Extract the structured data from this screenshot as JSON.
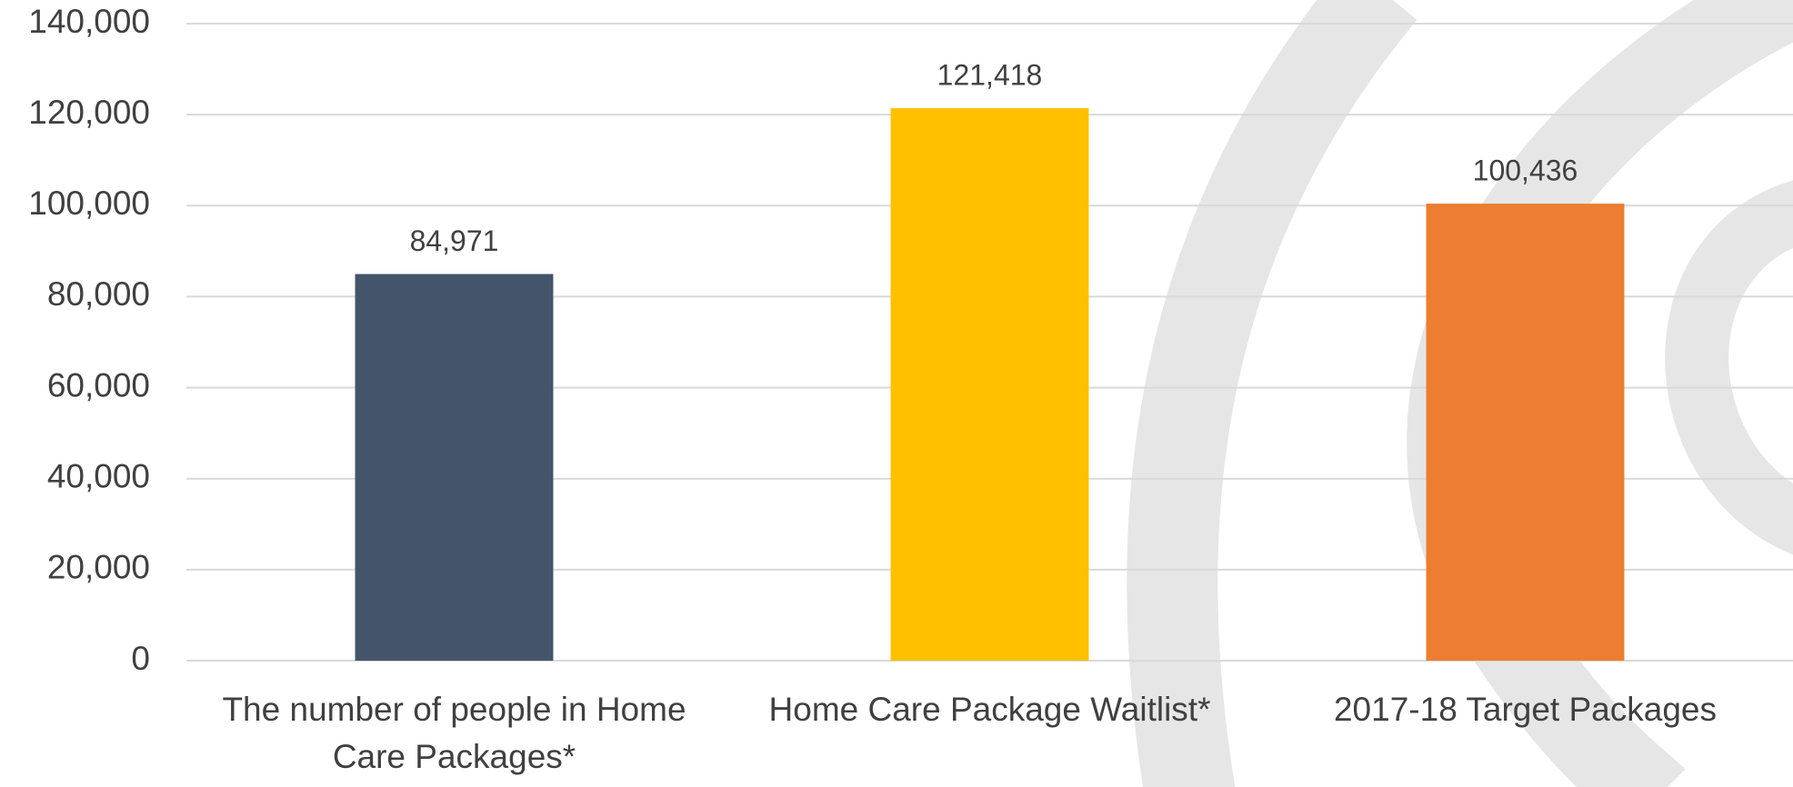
{
  "chart_data": {
    "type": "bar",
    "categories": [
      "The number of people in Home Care Packages*",
      "Home Care Package Waitlist*",
      "2017-18 Target Packages"
    ],
    "values": [
      84971,
      121418,
      100436
    ],
    "value_labels": [
      "84,971",
      "121,418",
      "100,436"
    ],
    "colors": [
      "#44546a",
      "#ffc000",
      "#ed7d31"
    ],
    "ylim": [
      0,
      140000
    ],
    "yticks": [
      0,
      {
        "value": 20000,
        "label": "20,000"
      },
      {
        "value": 40000,
        "label": "40,000"
      },
      {
        "value": 60000,
        "label": "60,000"
      },
      {
        "value": 80000,
        "label": "80,000"
      },
      {
        "value": 100000,
        "label": "100,000"
      },
      {
        "value": 120000,
        "label": "120,000"
      },
      {
        "value": 140000,
        "label": "140,000"
      }
    ],
    "grid": true
  }
}
